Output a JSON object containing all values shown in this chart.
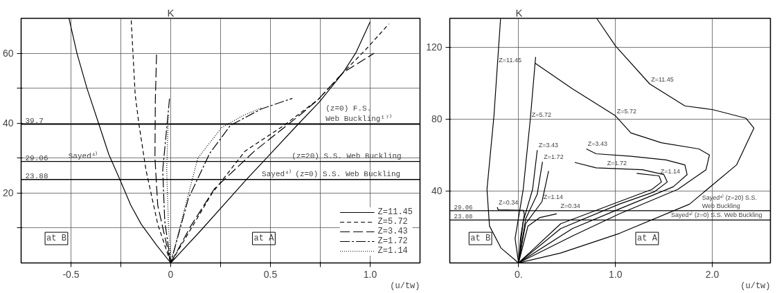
{
  "chart_data": [
    {
      "type": "line",
      "xlabel": "(u/tw)",
      "ylabel": "K",
      "xlim": [
        -0.75,
        1.25
      ],
      "ylim": [
        0,
        70
      ],
      "xticks": [
        -0.5,
        {
          "value": -0.25,
          "label": null
        },
        0,
        {
          "value": 0.25,
          "label": null
        },
        0.5,
        {
          "value": 0.75,
          "label": null
        },
        {
          "value": 1.0,
          "label": "1.0"
        }
      ],
      "yticks": [
        {
          "value": 10,
          "label": null
        },
        20,
        {
          "value": 30,
          "label": null
        },
        40,
        {
          "value": 50,
          "label": null
        },
        60
      ],
      "grid": true,
      "legend": "bottom right",
      "series": [
        {
          "name": "Z=11.45",
          "color": "#000000",
          "line_style": "solid",
          "x": [
            -0.51,
            -0.47,
            -0.42,
            -0.36,
            -0.31,
            -0.255,
            -0.2,
            -0.148,
            -0.07,
            0,
            0.148,
            0.38,
            0.48,
            0.634,
            0.746,
            0.865,
            0.93,
            1.0
          ],
          "values": [
            70,
            60,
            50,
            39.7,
            31,
            23.9,
            16.5,
            11.1,
            5,
            0,
            9.1,
            23.9,
            30,
            39.4,
            46.1,
            54.5,
            60.3,
            69
          ]
        },
        {
          "name": "Z=5.72",
          "color": "#000000",
          "line_style": "dashed",
          "x": [
            -0.198,
            -0.178,
            -0.16,
            -0.124,
            -0.065,
            0,
            0.207,
            0.373,
            0.569,
            0.74,
            0.865,
            0.977,
            1.094
          ],
          "values": [
            69.4,
            48.1,
            40,
            26.6,
            11.1,
            0,
            19.9,
            32,
            39.4,
            46.8,
            54.5,
            61,
            68.4
          ]
        },
        {
          "name": "Z=3.43",
          "color": "#000000",
          "line_style": "longdash",
          "x": [
            -0.071,
            -0.077,
            -0.079,
            -0.065,
            0,
            0.1,
            0.219,
            0.42,
            0.658,
            0.74,
            0.865,
            1.02
          ],
          "values": [
            59.6,
            46.8,
            30,
            16.5,
            0,
            10.5,
            21.2,
            32,
            42.8,
            46.8,
            54.5,
            60
          ]
        },
        {
          "name": "Z=1.72",
          "color": "#000000",
          "line_style": "dashdot",
          "x": [
            -0.006,
            -0.04,
            -0.03,
            0,
            0.089,
            0.195,
            0.3,
            0.456,
            0.61
          ],
          "values": [
            47,
            26.6,
            12,
            0,
            18.5,
            31.3,
            39.4,
            44.1,
            47.1
          ]
        },
        {
          "name": "Z=1.14",
          "color": "#000000",
          "line_style": "dotted",
          "x": [
            -0.012,
            -0.02,
            -0.012,
            0,
            0.065,
            0.136,
            0.255,
            0.36,
            0.456
          ],
          "values": [
            42.2,
            26.6,
            12,
            0,
            14.5,
            30,
            38.7,
            42.1,
            44.4
          ]
        }
      ],
      "ref_lines": [
        {
          "axis": "y",
          "value": 39.7,
          "label": "39.7"
        },
        {
          "axis": "y",
          "value": 29.06,
          "label": "29.06"
        },
        {
          "axis": "y",
          "value": 23.88,
          "label": "23.88"
        }
      ],
      "annotations": [
        {
          "text": "(z=0) F.S.\nWeb Buckling¹⁷⁾",
          "x": 0.77,
          "y": 39.7
        },
        {
          "text": "Sayed⁴⁾",
          "x": -0.52,
          "y": 29.06
        },
        {
          "text": "(z=20) S.S. Web Buckling",
          "x": 0.6,
          "y": 29.06
        },
        {
          "text": "Sayed⁴⁾ (z=0) S.S. Web Buckling",
          "x": 0.45,
          "y": 23.88
        },
        "at B",
        "at A"
      ]
    },
    {
      "type": "line",
      "xlabel": "(u/tw)",
      "ylabel": "K",
      "xlim": [
        -0.71,
        2.6
      ],
      "ylim": [
        0,
        136
      ],
      "xticks": [
        {
          "value": 0,
          "label": "0."
        },
        {
          "value": 1.0,
          "label": "1.0"
        },
        {
          "value": 2.0,
          "label": "2.0"
        }
      ],
      "yticks": [
        40,
        80,
        120
      ],
      "grid": true,
      "line_style": "solid",
      "series": [
        {
          "color": "#000000",
          "x": [
            -0.186,
            -0.254,
            -0.326,
            -0.3,
            -0.18,
            0,
            0.435,
            1.04,
            1.765,
            2.25,
            2.43,
            2.346,
            2.007,
            1.717,
            1.354,
            1.0,
            0.81
          ],
          "values": [
            135.7,
            81.8,
            40.9,
            20.5,
            8.2,
            0,
            5.5,
            16.4,
            32.7,
            54.5,
            75,
            80.5,
            85.2,
            87.3,
            99.5,
            120.7,
            135.7
          ]
        },
        {
          "color": "#000000",
          "x": [
            0.176,
            0.121,
            0.048,
            -0.036,
            0,
            0.556,
            1.04,
            1.644,
            1.935,
            1.97,
            1.862,
            1.475,
            1.16,
            1.0,
            0.556,
            0.169
          ],
          "values": [
            114.5,
            79.8,
            40.9,
            13.6,
            0,
            15,
            27.3,
            40.9,
            51.8,
            60,
            63.4,
            66.8,
            72.3,
            81.8,
            96.8,
            111.1
          ]
        },
        {
          "color": "#000000",
          "x": [
            0.193,
            0.145,
            0.048,
            0,
            0.556,
            1.04,
            1.596,
            1.74,
            1.717,
            1.52,
            1.16,
            0.8,
            0.7
          ],
          "values": [
            62.7,
            40.9,
            23.2,
            0,
            19.1,
            30,
            42.3,
            49.1,
            54.5,
            57.3,
            59.3,
            60.7,
            63.4
          ]
        },
        {
          "color": "#000000",
          "x": [
            0.247,
            0.193,
            0.073,
            0,
            0.435,
            1.04,
            1.4,
            1.535,
            1.5,
            1.28,
            0.8,
            0.58
          ],
          "values": [
            56.2,
            38.2,
            24.5,
            0,
            19.1,
            32.7,
            39.5,
            45,
            49.1,
            51.8,
            52.9,
            55.9
          ]
        },
        {
          "color": "#000000",
          "x": [
            0.31,
            0.242,
            0.073,
            0,
            0.435,
            1.04,
            1.378,
            1.475,
            1.45,
            1.22
          ],
          "values": [
            51.1,
            34.1,
            21.8,
            0,
            21.8,
            34.1,
            40.9,
            45,
            48.4,
            49.8
          ]
        },
        {
          "color": "#000000",
          "x": [
            -0.22,
            -0.21,
            0.05,
            0.06,
            0.02,
            0,
            0.097,
            0.218,
            0.394
          ],
          "values": [
            31,
            29.5,
            29.3,
            27,
            14,
            0,
            20.5,
            25.2,
            27.3
          ]
        }
      ],
      "ref_lines": [
        {
          "axis": "y",
          "value": 29.06,
          "label": "29.06"
        },
        {
          "axis": "y",
          "value": 23.88,
          "label": "23.88"
        }
      ],
      "annotations": [
        {
          "text": "Z=11.45",
          "x": -0.218,
          "y": 110
        },
        {
          "text": "Z=5.72",
          "x": 0.121,
          "y": 79.8
        },
        {
          "text": "Z=11.45",
          "x": 1.354,
          "y": 99.5
        },
        {
          "text": "Z=5.72",
          "x": 1.0,
          "y": 81.8
        },
        {
          "text": "Z=3.43",
          "x": 0.193,
          "y": 62.7
        },
        {
          "text": "Z=3.43",
          "x": 0.7,
          "y": 63.4
        },
        {
          "text": "Z=1.72",
          "x": 0.247,
          "y": 56.2
        },
        {
          "text": "Z=1.72",
          "x": 0.9,
          "y": 52.67
        },
        {
          "text": "Z=1.14",
          "x": 0.242,
          "y": 34.1
        },
        {
          "text": "Z=1.14",
          "x": 1.45,
          "y": 48.4
        },
        {
          "text": "Z=0.34",
          "x": -0.22,
          "y": 31
        },
        {
          "text": "Z=0.34",
          "x": 0.42,
          "y": 29.06
        },
        {
          "text": "Sayed⁴⁾ (z=20) S.S.\nWeb Buckling",
          "x": 1.88,
          "y": 29.06
        },
        {
          "text": "Sayed⁴⁾ (z=0) S.S. Web Buckling",
          "x": 1.56,
          "y": 23.88
        },
        "at B",
        "at A"
      ]
    }
  ]
}
